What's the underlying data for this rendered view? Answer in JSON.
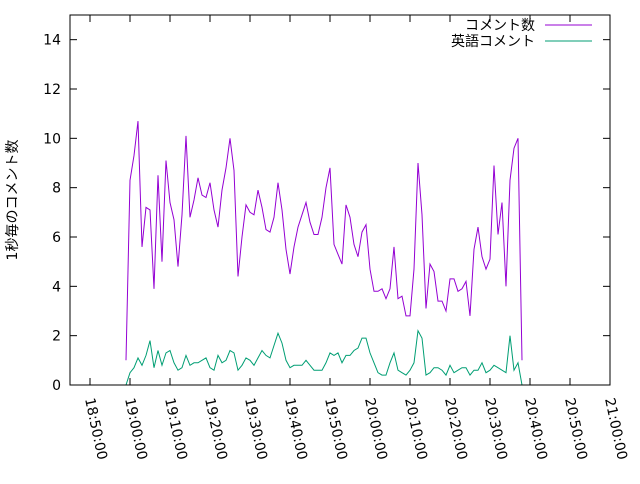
{
  "chart_data": {
    "type": "line",
    "title": "",
    "xlabel": "",
    "ylabel": "1秒毎のコメント数",
    "xlim": [
      "18:45:00",
      "21:00:00"
    ],
    "ylim": [
      0,
      15
    ],
    "grid": false,
    "legend_position": "top-right",
    "x_tick_labels": [
      "18:50:00",
      "19:00:00",
      "19:10:00",
      "19:20:00",
      "19:30:00",
      "19:40:00",
      "19:50:00",
      "20:00:00",
      "20:10:00",
      "20:20:00",
      "20:30:00",
      "20:40:00",
      "20:50:00",
      "21:00:00"
    ],
    "y_ticks": [
      0,
      2,
      4,
      6,
      8,
      10,
      12,
      14
    ],
    "sample_interval_seconds": 60,
    "x_start": "18:59:00",
    "series": [
      {
        "name": "コメント数",
        "color": "#9400d3",
        "values": [
          1.0,
          8.3,
          9.3,
          10.7,
          5.6,
          7.2,
          7.1,
          3.9,
          8.5,
          5.0,
          9.1,
          7.4,
          6.7,
          4.8,
          6.9,
          10.1,
          6.8,
          7.5,
          8.4,
          7.7,
          7.6,
          8.2,
          7.1,
          6.4,
          7.9,
          8.8,
          10.0,
          8.7,
          4.4,
          6.0,
          7.3,
          7.0,
          6.9,
          7.9,
          7.2,
          6.3,
          6.2,
          6.8,
          8.2,
          7.1,
          5.5,
          4.5,
          5.6,
          6.4,
          6.9,
          7.4,
          6.6,
          6.1,
          6.1,
          6.8,
          8.0,
          8.8,
          5.7,
          5.3,
          4.9,
          7.3,
          6.8,
          5.7,
          5.2,
          6.2,
          6.5,
          4.7,
          3.8,
          3.8,
          3.9,
          3.5,
          3.9,
          5.6,
          3.5,
          3.6,
          2.8,
          2.8,
          4.7,
          9.0,
          6.9,
          3.1,
          4.9,
          4.6,
          3.4,
          3.4,
          3.0,
          4.3,
          4.3,
          3.8,
          3.9,
          4.2,
          2.8,
          5.5,
          6.4,
          5.2,
          4.7,
          5.1,
          8.9,
          6.1,
          7.4,
          4.0,
          8.3,
          9.6,
          10.0,
          1.0
        ]
      },
      {
        "name": "英語コメント",
        "color": "#009e73",
        "values": [
          0.0,
          0.5,
          0.7,
          1.1,
          0.8,
          1.2,
          1.8,
          0.7,
          1.4,
          0.8,
          1.3,
          1.4,
          0.9,
          0.6,
          0.7,
          1.2,
          0.8,
          0.9,
          0.9,
          1.0,
          1.1,
          0.7,
          0.6,
          1.2,
          0.9,
          1.0,
          1.4,
          1.3,
          0.6,
          0.8,
          1.1,
          1.0,
          0.8,
          1.1,
          1.4,
          1.2,
          1.1,
          1.6,
          2.1,
          1.7,
          1.0,
          0.7,
          0.8,
          0.8,
          0.8,
          1.0,
          0.8,
          0.6,
          0.6,
          0.6,
          0.9,
          1.3,
          1.2,
          1.3,
          0.9,
          1.2,
          1.2,
          1.4,
          1.5,
          1.9,
          1.9,
          1.3,
          0.9,
          0.5,
          0.4,
          0.4,
          0.9,
          1.3,
          0.6,
          0.5,
          0.4,
          0.6,
          0.9,
          2.2,
          1.9,
          0.4,
          0.5,
          0.7,
          0.7,
          0.6,
          0.4,
          0.8,
          0.5,
          0.6,
          0.7,
          0.7,
          0.4,
          0.6,
          0.6,
          0.9,
          0.5,
          0.6,
          0.8,
          0.7,
          0.6,
          0.5,
          2.0,
          0.6,
          0.9,
          0.0
        ]
      }
    ]
  }
}
